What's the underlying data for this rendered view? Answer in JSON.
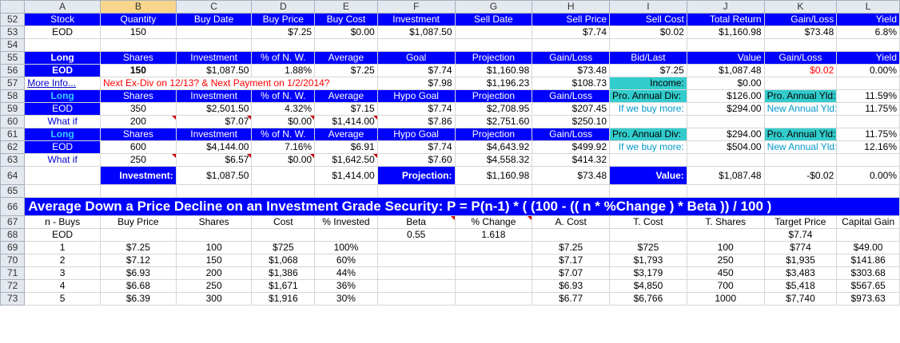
{
  "columns": [
    "A",
    "B",
    "C",
    "D",
    "E",
    "F",
    "G",
    "H",
    "I",
    "J",
    "K",
    "L"
  ],
  "selected_column": "B",
  "rows": {
    "r52": {
      "num": "52",
      "cells": [
        "Stock",
        "Quantity",
        "Buy Date",
        "Buy Price",
        "Buy Cost",
        "Investment",
        "Sell Date",
        "Sell Price",
        "Sell Cost",
        "Total Return",
        "Gain/Loss",
        "Yield"
      ]
    },
    "r53": {
      "num": "53",
      "cells": [
        "EOD",
        "150",
        "",
        "$7.25",
        "$0.00",
        "$1,087.50",
        "",
        "$7.74",
        "$0.02",
        "$1,160.98",
        "$73.48",
        "6.8%"
      ]
    },
    "r54": {
      "num": "54"
    },
    "r55": {
      "num": "55",
      "cells": [
        "Long",
        "Shares",
        "Investment",
        "% of N. W.",
        "Average",
        "Goal",
        "Projection",
        "Gain/Loss",
        "Bid/Last",
        "Value",
        "Gain/Loss",
        "Yield"
      ]
    },
    "r56": {
      "num": "56",
      "cells": [
        "EOD",
        "150",
        "$1,087.50",
        "1.88%",
        "$7.25",
        "$7.74",
        "$1,160.98",
        "$73.48",
        "$7.25",
        "$1,087.48",
        "$0.02",
        "0.00%"
      ]
    },
    "r57": {
      "num": "57",
      "link": "More Info...",
      "note": "Next Ex-Div on 12/13? & Next Payment on 1/2/2014?",
      "cells": [
        "$7.98",
        "$1,196.23",
        "$108.73",
        "Income:",
        "$0.00"
      ]
    },
    "r58": {
      "num": "58",
      "cells": [
        "Long",
        "Shares",
        "Investment",
        "% of N. W.",
        "Average",
        "Hypo Goal",
        "Projection",
        "Gain/Loss",
        "Pro. Annual Div:",
        "$126.00",
        "Pro. Annual Yld:",
        "11.59%"
      ]
    },
    "r59": {
      "num": "59",
      "cells": [
        "EOD",
        "350",
        "$2,501.50",
        "4.32%",
        "$7.15",
        "$7.74",
        "$2,708.95",
        "$207.45",
        "If we buy more:",
        "$294.00",
        "New Annual Yld:",
        "11.75%"
      ]
    },
    "r60": {
      "num": "60",
      "cells": [
        "What if",
        "200",
        "$7.07",
        "$0.00",
        "$1,414.00",
        "$7.86",
        "$2,751.60",
        "$250.10"
      ]
    },
    "r61": {
      "num": "61",
      "cells": [
        "Long",
        "Shares",
        "Investment",
        "% of N. W.",
        "Average",
        "Hypo Goal",
        "Projection",
        "Gain/Loss",
        "Pro. Annual Div:",
        "$294.00",
        "Pro. Annual Yld:",
        "11.75%"
      ]
    },
    "r62": {
      "num": "62",
      "cells": [
        "EOD",
        "600",
        "$4,144.00",
        "7.16%",
        "$6.91",
        "$7.74",
        "$4,643.92",
        "$499.92",
        "If we buy more:",
        "$504.00",
        "New Annual Yld:",
        "12.16%"
      ]
    },
    "r63": {
      "num": "63",
      "cells": [
        "What if",
        "250",
        "$6.57",
        "$0.00",
        "$1,642.50",
        "$7.60",
        "$4,558.32",
        "$414.32"
      ]
    },
    "r64": {
      "num": "64",
      "cells": [
        "Investment:",
        "$1,087.50",
        "$1,414.00",
        "Projection:",
        "$1,160.98",
        "$73.48",
        "Value:",
        "$1,087.48",
        "-$0.02",
        "0.00%"
      ]
    },
    "r65": {
      "num": "65"
    },
    "r66": {
      "num": "66",
      "banner": "Average Down a Price Decline on an Investment Grade Security:  P = P(n-1) * ( (100 - (( n * %Change ) * Beta )) / 100 )"
    },
    "r67": {
      "num": "67",
      "cells": [
        "n - Buys",
        "Buy Price",
        "Shares",
        "Cost",
        "% Invested",
        "Beta",
        "% Change",
        "A. Cost",
        "T. Cost",
        "T. Shares",
        "Target Price",
        "Capital Gain"
      ]
    },
    "r68": {
      "num": "68",
      "cells": [
        "EOD",
        "",
        "",
        "",
        "",
        "0.55",
        "1.618",
        "",
        "",
        "",
        "$7.74",
        ""
      ]
    },
    "r69": {
      "num": "69",
      "cells": [
        "1",
        "$7.25",
        "100",
        "$725",
        "100%",
        "",
        "",
        "$7.25",
        "$725",
        "100",
        "$774",
        "$49.00"
      ]
    },
    "r70": {
      "num": "70",
      "cells": [
        "2",
        "$7.12",
        "150",
        "$1,068",
        "60%",
        "",
        "",
        "$7.17",
        "$1,793",
        "250",
        "$1,935",
        "$141.86"
      ]
    },
    "r71": {
      "num": "71",
      "cells": [
        "3",
        "$6.93",
        "200",
        "$1,386",
        "44%",
        "",
        "",
        "$7.07",
        "$3,179",
        "450",
        "$3,483",
        "$303.68"
      ]
    },
    "r72": {
      "num": "72",
      "cells": [
        "4",
        "$6.68",
        "250",
        "$1,671",
        "36%",
        "",
        "",
        "$6.93",
        "$4,850",
        "700",
        "$5,418",
        "$567.65"
      ]
    },
    "r73": {
      "num": "73",
      "cells": [
        "5",
        "$6.39",
        "300",
        "$1,916",
        "30%",
        "",
        "",
        "$6.77",
        "$6,766",
        "1000",
        "$7,740",
        "$973.63"
      ]
    }
  }
}
